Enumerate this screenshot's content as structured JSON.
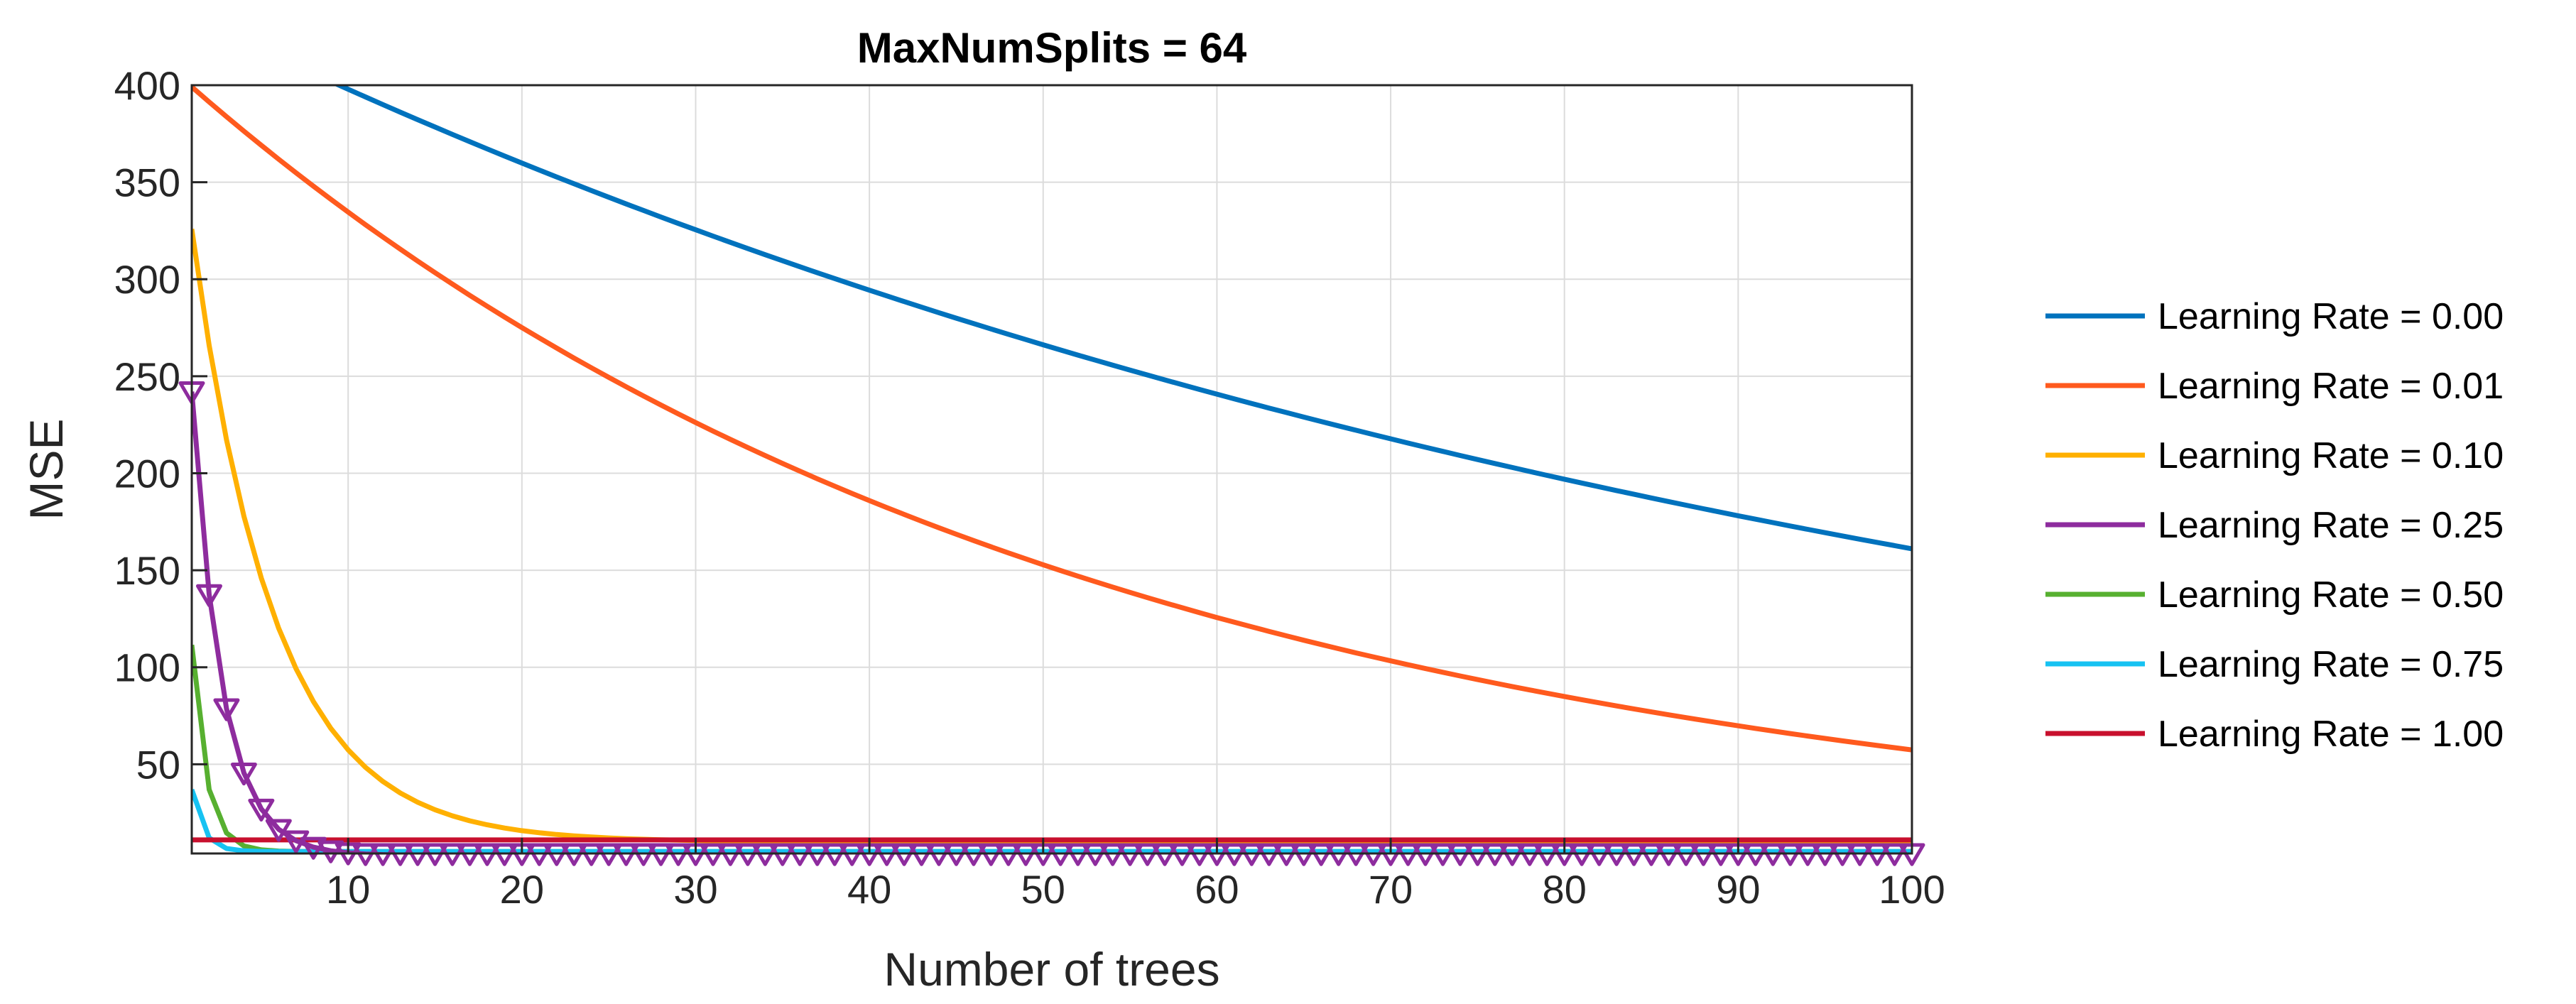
{
  "chart_data": {
    "type": "line",
    "title": "MaxNumSplits = 64",
    "xlabel": "Number of trees",
    "ylabel": "MSE",
    "xlim": [
      1,
      100
    ],
    "ylim": [
      4,
      400
    ],
    "xticks": [
      10,
      20,
      30,
      40,
      50,
      60,
      70,
      80,
      90,
      100
    ],
    "yticks": [
      50,
      100,
      150,
      200,
      250,
      300,
      350,
      400
    ],
    "grid": true,
    "legend_position": "right",
    "series": [
      {
        "name": "Learning Rate = 0.00",
        "color": "#0072BD",
        "decay": 0.99,
        "start": 440,
        "floor": 0,
        "marker": "none"
      },
      {
        "name": "Learning Rate = 0.01",
        "color": "#FF5A1E",
        "decay": 0.9806,
        "start": 407,
        "floor": 0,
        "marker": "none"
      },
      {
        "name": "Learning Rate = 0.10",
        "color": "#FFB000",
        "decay": 0.81,
        "start": 400,
        "floor": 10,
        "marker": "none"
      },
      {
        "name": "Learning Rate = 0.25",
        "color": "#8E2C9E",
        "decay": 0.5625,
        "start": 428,
        "floor": 3,
        "marker": "triangle-down"
      },
      {
        "name": "Learning Rate = 0.50",
        "color": "#57B030",
        "decay": 0.3,
        "start": 360,
        "floor": 5,
        "marker": "none"
      },
      {
        "name": "Learning Rate = 0.75",
        "color": "#17C2F2",
        "decay": 0.22,
        "start": 150,
        "floor": 5,
        "marker": "none"
      },
      {
        "name": "Learning Rate = 1.00",
        "color": "#C8102E",
        "decay": 0,
        "start": 11,
        "floor": 11,
        "marker": "none"
      }
    ]
  }
}
